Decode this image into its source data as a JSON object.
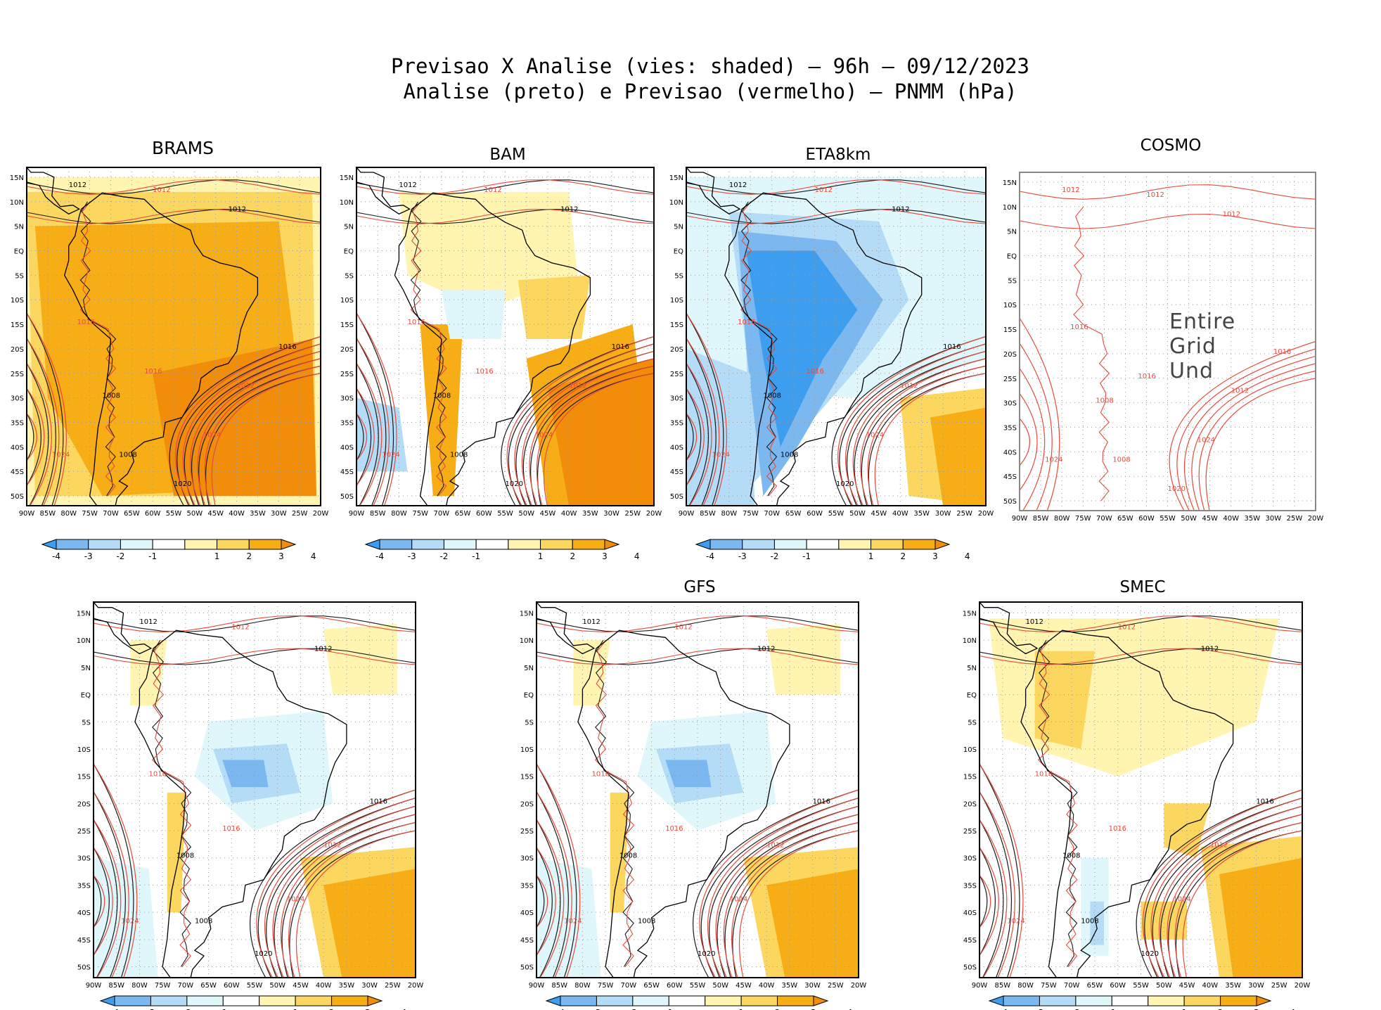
{
  "title": {
    "line1": "Previsao X Analise (vies: shaded) – 96h – 09/12/2023",
    "line2": "Analise (preto) e Previsao (vermelho) – PNMM (hPa)"
  },
  "axes": {
    "lat_labels": [
      "15N",
      "10N",
      "5N",
      "EQ",
      "5S",
      "10S",
      "15S",
      "20S",
      "25S",
      "30S",
      "35S",
      "40S",
      "45S",
      "50S"
    ],
    "lon_labels": [
      "90W",
      "85W",
      "80W",
      "75W",
      "70W",
      "65W",
      "60W",
      "55W",
      "50W",
      "45W",
      "40W",
      "35W",
      "30W",
      "25W",
      "20W"
    ]
  },
  "colorbar": {
    "labels": [
      "-4",
      "-3",
      "-2",
      "-1",
      "1",
      "2",
      "3",
      "4"
    ],
    "colors": [
      "#3d9ef0",
      "#7ab8ef",
      "#b5dcf7",
      "#dff6fb",
      "#ffffff",
      "#fff5b0",
      "#fbd760",
      "#f6ad16",
      "#f28d0a"
    ]
  },
  "colors": {
    "analysis_contour": "#1a1a1a",
    "forecast_contour": "#e84a3c",
    "map_grid": "#9a9a9a"
  },
  "panels": [
    {
      "title": "BRAMS",
      "bias": "positive-strong",
      "unavailable_text": ""
    },
    {
      "title": "BAM",
      "bias": "positive-south",
      "unavailable_text": ""
    },
    {
      "title": "ETA8km",
      "bias": "negative-strong",
      "unavailable_text": ""
    },
    {
      "title": "COSMO",
      "bias": "none",
      "unavailable_text": "Entire Grid Und"
    },
    {
      "title": "",
      "bias": "mixed",
      "unavailable_text": ""
    },
    {
      "title": "GFS",
      "bias": "mixed",
      "unavailable_text": ""
    },
    {
      "title": "SMEC",
      "bias": "mixed-positive",
      "unavailable_text": ""
    }
  ],
  "contour_labels": [
    "1008",
    "1012",
    "1016",
    "1020",
    "1024"
  ],
  "chart_data": {
    "type": "heatmap",
    "title": "Previsao X Analise (vies: shaded) – 96h – 09/12/2023",
    "subtitle": "Analise (preto) e Previsao (vermelho) – PNMM (hPa)",
    "variable": "PNMM (hPa)",
    "forecast_hour": "96h",
    "date": "09/12/2023",
    "lat_range": [
      -52,
      17
    ],
    "lon_range": [
      -90,
      -20
    ],
    "colorbar_levels": [
      -4,
      -3,
      -2,
      -1,
      1,
      2,
      3,
      4
    ],
    "isobar_levels_hpa": [
      1008,
      1012,
      1016,
      1020,
      1024
    ],
    "models": [
      "BRAMS",
      "BAM",
      "ETA8km",
      "COSMO",
      "",
      "GFS",
      "SMEC"
    ]
  }
}
